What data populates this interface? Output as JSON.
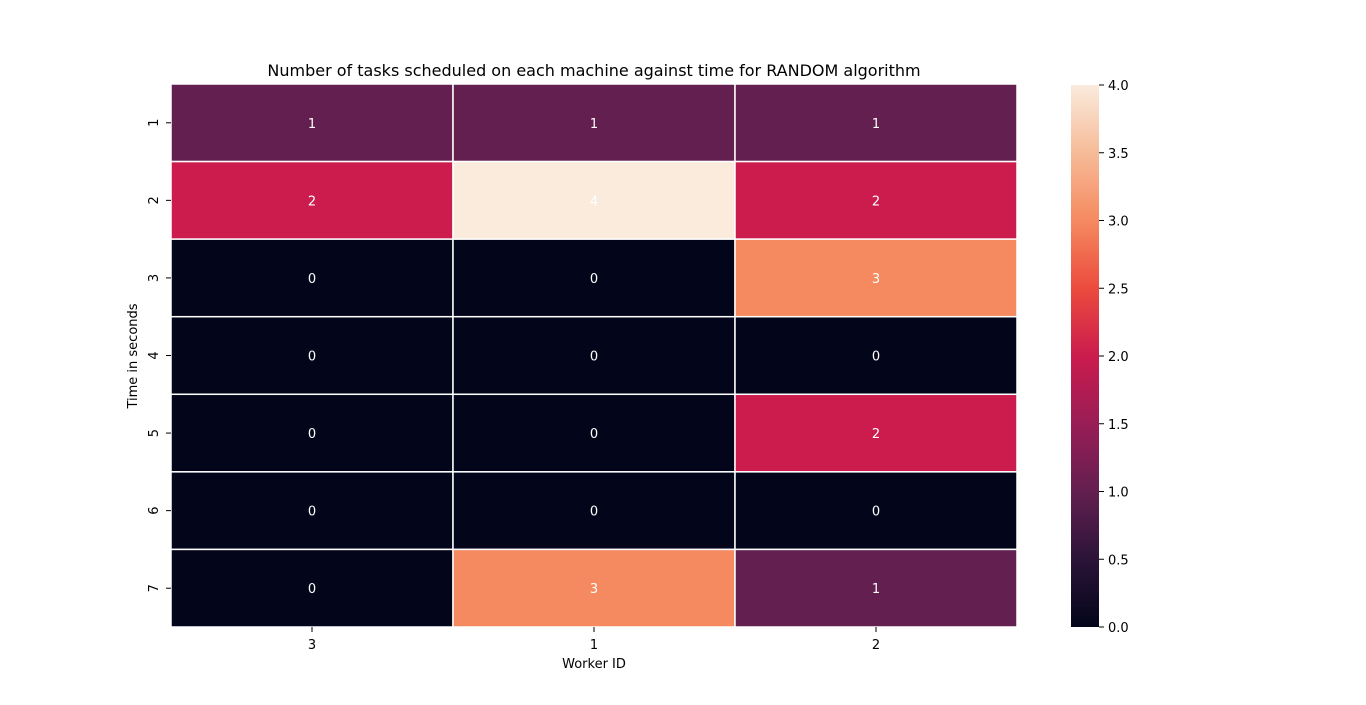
{
  "chart_data": {
    "type": "heatmap",
    "title": "Number of tasks scheduled on each machine against time for RANDOM algorithm",
    "xlabel": "Worker ID",
    "ylabel": "Time in seconds",
    "x_categories": [
      "3",
      "1",
      "2"
    ],
    "y_categories": [
      "1",
      "2",
      "3",
      "4",
      "5",
      "6",
      "7"
    ],
    "values": [
      [
        1,
        1,
        1
      ],
      [
        2,
        4,
        2
      ],
      [
        0,
        0,
        3
      ],
      [
        0,
        0,
        0
      ],
      [
        0,
        0,
        2
      ],
      [
        0,
        0,
        0
      ],
      [
        0,
        3,
        1
      ]
    ],
    "colorbar": {
      "range": [
        0.0,
        4.0
      ],
      "ticks": [
        "0.0",
        "0.5",
        "1.0",
        "1.5",
        "2.0",
        "2.5",
        "3.0",
        "3.5",
        "4.0"
      ],
      "colormap": "rocket"
    },
    "colors": {
      "0": "#03051a",
      "1": "#631f50",
      "2": "#cb1c4d",
      "3": "#f58a60",
      "4": "#faebdd"
    }
  }
}
